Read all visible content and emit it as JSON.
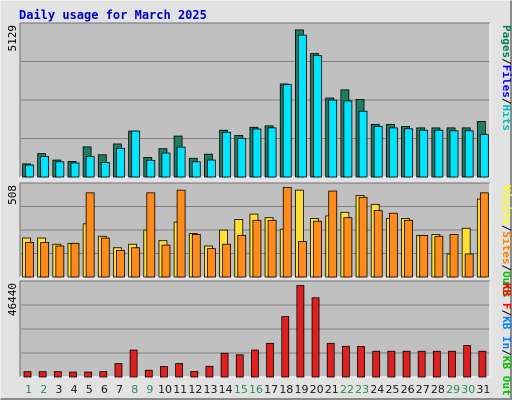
{
  "title": "Daily usage for March 2025",
  "colors": {
    "panel": "#c0c0c0",
    "grid": "#808080",
    "pages": "#00805c",
    "files": "#0000ff",
    "hits": "#00c0c0",
    "visits": "#ffff00",
    "sites": "#ff8000",
    "kb_in": "#0080ff",
    "kb_out": "#00c000",
    "kb_f": "#ff0000",
    "bar_hits": "#00e5ff",
    "bar_pages": "#1e7b64",
    "bar_visits": "#ffe033",
    "bar_sites": "#ff8c1a",
    "bar_kbf": "#e02020",
    "weekday_label": "#1a1a1a",
    "weekend_label": "#2e8b57"
  },
  "chart_data": [
    {
      "type": "bar",
      "y_max_label": "5129",
      "legend": [
        "Pages",
        "Files",
        "Hits"
      ],
      "days": [
        1,
        2,
        3,
        4,
        5,
        6,
        7,
        8,
        9,
        10,
        11,
        12,
        13,
        14,
        15,
        16,
        17,
        18,
        19,
        20,
        21,
        22,
        23,
        24,
        25,
        26,
        27,
        28,
        29,
        30,
        31
      ],
      "series": [
        {
          "name": "Pages",
          "values": [
            450,
            800,
            580,
            530,
            1030,
            760,
            1130,
            1570,
            670,
            970,
            1400,
            640,
            780,
            1600,
            1420,
            1700,
            1750,
            3180,
            5030,
            4220,
            2700,
            2980,
            2650,
            1800,
            1800,
            1730,
            1680,
            1680,
            1680,
            1680,
            1900
          ]
        },
        {
          "name": "Hits",
          "values": [
            410,
            700,
            520,
            480,
            700,
            500,
            980,
            1570,
            570,
            820,
            1020,
            520,
            580,
            1530,
            1320,
            1640,
            1680,
            3160,
            4850,
            4150,
            2630,
            2600,
            2250,
            1730,
            1680,
            1650,
            1600,
            1600,
            1580,
            1580,
            1450
          ]
        }
      ],
      "ylim": [
        0,
        5129
      ]
    },
    {
      "type": "bar",
      "y_max_label": "508",
      "legend": [
        "Visits",
        "Sites",
        "Outs"
      ],
      "days": [
        1,
        2,
        3,
        4,
        5,
        6,
        7,
        8,
        9,
        10,
        11,
        12,
        13,
        14,
        15,
        16,
        17,
        18,
        19,
        20,
        21,
        22,
        23,
        24,
        25,
        26,
        27,
        28,
        29,
        30,
        31
      ],
      "series": [
        {
          "name": "Visits",
          "values": [
            220,
            220,
            185,
            190,
            300,
            230,
            165,
            185,
            265,
            205,
            310,
            245,
            175,
            265,
            325,
            355,
            335,
            270,
            490,
            330,
            345,
            365,
            460,
            410,
            330,
            330,
            235,
            240,
            130,
            275,
            440
          ]
        },
        {
          "name": "Sites",
          "values": [
            195,
            195,
            175,
            190,
            475,
            220,
            150,
            165,
            475,
            180,
            490,
            240,
            160,
            185,
            235,
            320,
            320,
            505,
            200,
            315,
            485,
            335,
            450,
            375,
            360,
            320,
            235,
            230,
            240,
            130,
            475
          ]
        }
      ],
      "ylim": [
        0,
        508
      ]
    },
    {
      "type": "bar",
      "y_max_label": "46440",
      "legend": [
        "KB F",
        "KB In",
        "KB Out"
      ],
      "days": [
        1,
        2,
        3,
        4,
        5,
        6,
        7,
        8,
        9,
        10,
        11,
        12,
        13,
        14,
        15,
        16,
        17,
        18,
        19,
        20,
        21,
        22,
        23,
        24,
        25,
        26,
        27,
        28,
        29,
        30,
        31
      ],
      "series": [
        {
          "name": "KB F",
          "values": [
            2700,
            2700,
            2700,
            2500,
            2500,
            2700,
            6800,
            13600,
            3400,
            5300,
            6800,
            2800,
            5400,
            12000,
            11200,
            13600,
            17000,
            30500,
            46200,
            40000,
            17000,
            15500,
            15400,
            13000,
            13000,
            13000,
            13000,
            13000,
            13000,
            15900,
            13000
          ]
        }
      ],
      "ylim": [
        0,
        46440
      ]
    }
  ]
}
